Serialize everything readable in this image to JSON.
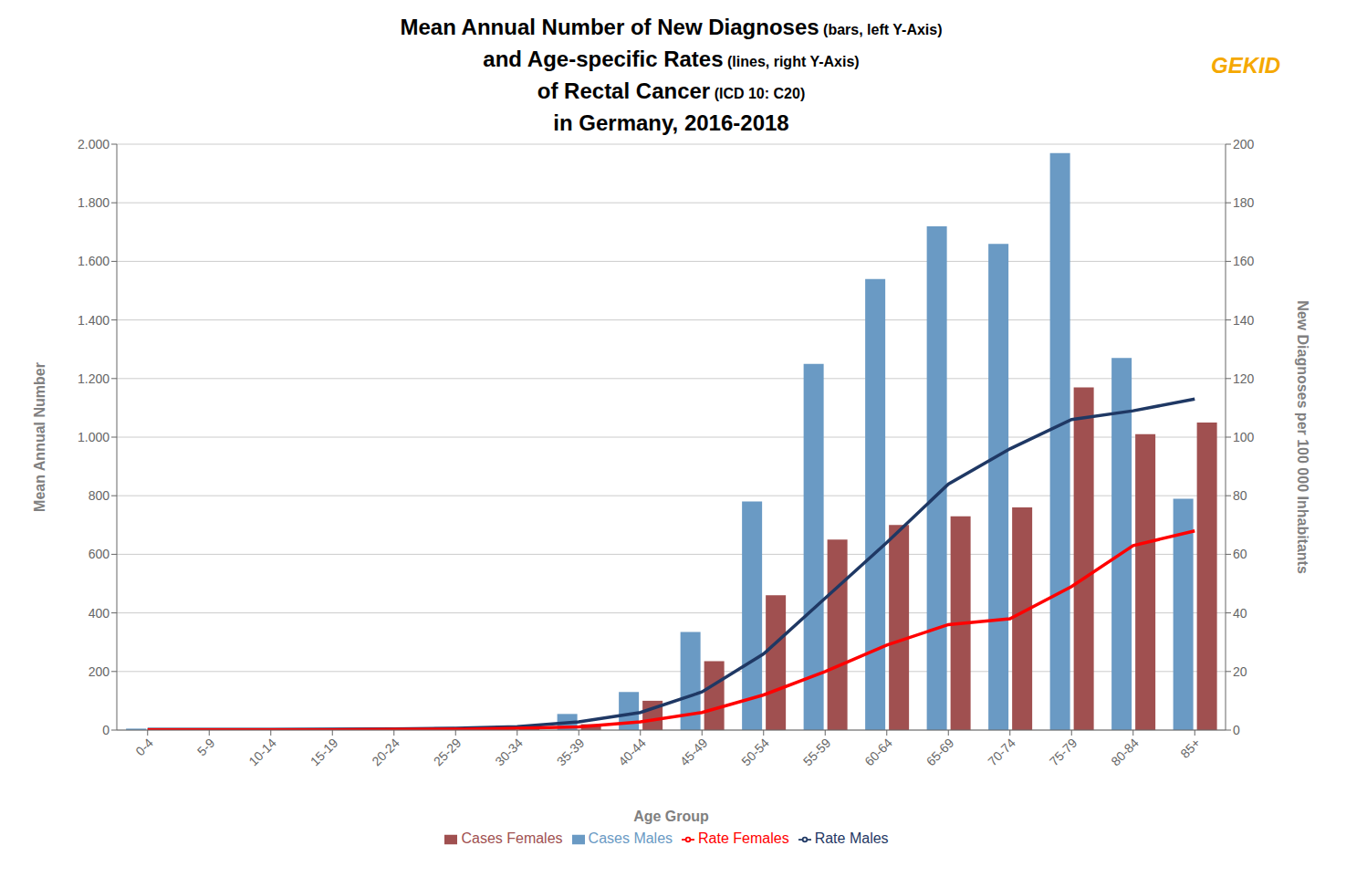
{
  "chart_data": {
    "type": "bar",
    "title": [
      [
        "Mean Annual Number of New Diagnoses",
        " (bars, left Y-Axis)"
      ],
      [
        "and Age-specific Rates",
        " (lines, right Y-Axis)"
      ],
      [
        "of Rectal Cancer",
        " (ICD 10: C20)"
      ],
      [
        "in Germany, 2016-2018"
      ]
    ],
    "annotations": [
      {
        "text": "GEKID",
        "color": "#F5A800"
      }
    ],
    "x_label": "Age Group",
    "y_label": "Mean Annual Number",
    "y2_label": "New Diagnoses per 100 000 Inhabitants",
    "categories": [
      "0-4",
      "5-9",
      "10-14",
      "15-19",
      "20-24",
      "25-29",
      "30-34",
      "35-39",
      "40-44",
      "45-49",
      "50-54",
      "55-59",
      "60-64",
      "65-69",
      "70-74",
      "75-79",
      "80-84",
      "85+"
    ],
    "series": [
      {
        "name": "Cases Males",
        "type": "bar",
        "color": "#6A9AC4",
        "values": [
          5,
          5,
          5,
          5,
          5,
          10,
          15,
          55,
          130,
          335,
          780,
          1250,
          1540,
          1720,
          1660,
          1970,
          1270,
          790
        ]
      },
      {
        "name": "Cases Females",
        "type": "bar",
        "color": "#A05050",
        "values": [
          5,
          5,
          5,
          5,
          5,
          5,
          10,
          20,
          100,
          235,
          460,
          650,
          700,
          730,
          760,
          1170,
          1010,
          1050
        ]
      },
      {
        "name": "Rate Males",
        "type": "line",
        "axis": "y2",
        "color": "#1F3864",
        "values": [
          0.2,
          0.2,
          0.2,
          0.3,
          0.4,
          0.6,
          1.2,
          2.8,
          6.0,
          13.0,
          26.0,
          45.0,
          64.0,
          84.0,
          96.0,
          106.0,
          109.0,
          113.0
        ]
      },
      {
        "name": "Rate Females",
        "type": "line",
        "axis": "y2",
        "color": "#FF0000",
        "values": [
          0.1,
          0.1,
          0.1,
          0.1,
          0.2,
          0.3,
          0.6,
          1.1,
          2.8,
          6.0,
          12.0,
          20.0,
          29.0,
          36.0,
          38.0,
          49.0,
          63.0,
          68.0
        ]
      }
    ],
    "ylim": [
      0,
      2000
    ],
    "yticks": [
      0,
      200,
      400,
      600,
      800,
      {
        "value": 1000,
        "label": "1.000"
      },
      {
        "value": 1200,
        "label": "1.200"
      },
      {
        "value": 1400,
        "label": "1.400"
      },
      {
        "value": 1600,
        "label": "1.600"
      },
      {
        "value": 1800,
        "label": "1.800"
      },
      {
        "value": 2000,
        "label": "2.000"
      }
    ],
    "y2lim": [
      0,
      200
    ],
    "y2ticks": [
      0,
      20,
      40,
      60,
      80,
      100,
      120,
      140,
      160,
      180,
      200
    ],
    "grid": true,
    "legend": "bottom"
  }
}
